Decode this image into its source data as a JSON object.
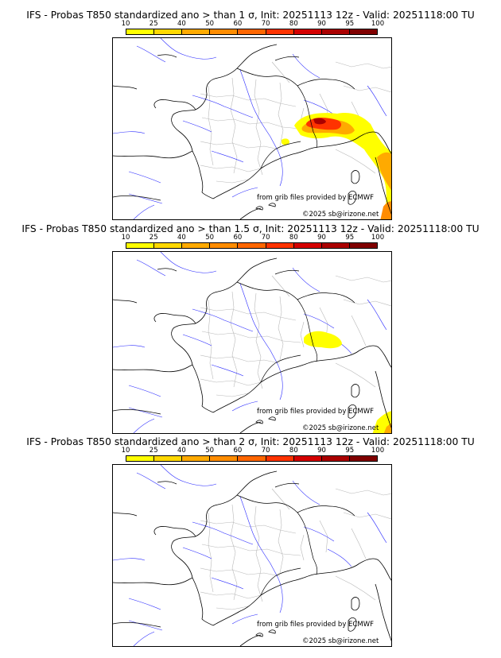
{
  "scale": {
    "ticks": [
      "10",
      "25",
      "40",
      "50",
      "60",
      "70",
      "80",
      "90",
      "95",
      "100"
    ],
    "colors": [
      "#ffff00",
      "#ffd800",
      "#ffaa00",
      "#ff8c00",
      "#ff6600",
      "#ff3300",
      "#d40000",
      "#aa0000",
      "#800000"
    ]
  },
  "panels": [
    {
      "title": "IFS - Probas T850  standardized ano > than 1 σ, Init: 20251113 12z - Valid: 20251118:00 TU"
    },
    {
      "title": "IFS - Probas T850  standardized ano > than 1.5 σ, Init: 20251113 12z - Valid: 20251118:00 TU"
    },
    {
      "title": "IFS - Probas T850  standardized ano > than 2 σ, Init: 20251113 12z - Valid: 20251118:00 TU"
    }
  ],
  "credits": {
    "source": "from grib files provided by ECMWF",
    "copyright": "©2025 sb@irizone.net"
  }
}
